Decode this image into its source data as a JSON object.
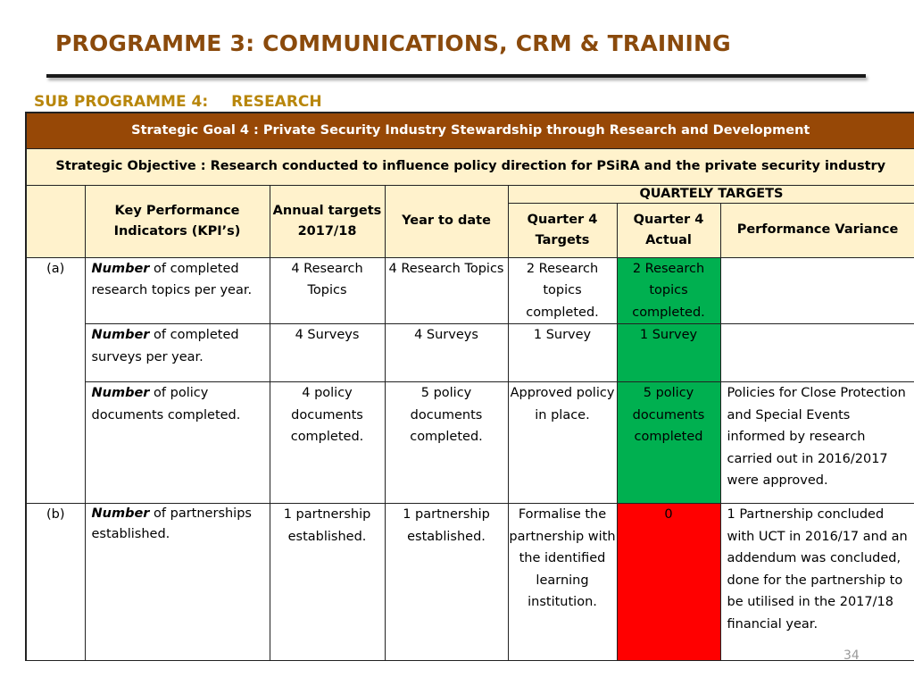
{
  "title": "PROGRAMME 3: COMMUNICATIONS, CRM & TRAINING",
  "sub_programme": {
    "label": "SUB PROGRAMME 4:",
    "name": "RESEARCH"
  },
  "strategic_goal": "Strategic Goal 4 : Private Security Industry Stewardship through Research and Development",
  "strategic_objective": "Strategic Objective : Research conducted to influence policy direction for PSiRA and the private security industry",
  "headers": {
    "kpi": "Key Performance Indicators (KPI’s)",
    "annual_targets": "Annual targets 2017/18",
    "year_to_date": "Year to date",
    "quarterly_targets": "QUARTELY  TARGETS",
    "q4_targets": "Quarter 4 Targets",
    "q4_actual": "Quarter 4 Actual",
    "variance": "Performance Variance"
  },
  "rows": [
    {
      "label": "(a)",
      "kpi_bold": "Number",
      "kpi_rest": " of completed research topics per year.",
      "annual": "4 Research Topics",
      "ytd": "4 Research Topics",
      "q4_target": "2 Research topics completed.",
      "q4_actual": "2 Research topics completed.",
      "variance": ""
    },
    {
      "label": "",
      "kpi_bold": "Number",
      "kpi_rest": " of completed surveys per year.",
      "annual": "4 Surveys",
      "ytd": "4 Surveys",
      "q4_target": "1 Survey",
      "q4_actual": "1 Survey",
      "variance": ""
    },
    {
      "label": "",
      "kpi_bold": "Number",
      "kpi_rest": " of policy documents completed.",
      "annual": "4 policy documents completed.",
      "ytd": "5 policy documents completed.",
      "q4_target": "Approved policy in place.",
      "q4_actual": "5 policy documents completed",
      "variance": "Policies for Close Protection and Special Events informed by research carried out in 2016/2017 were approved."
    },
    {
      "label": "(b)",
      "kpi_bold": "Number",
      "kpi_rest": " of partnerships established.",
      "annual": "1 partnership established.",
      "ytd": "1 partnership established.",
      "q4_target": "Formalise the partnership with the identified learning institution.",
      "q4_actual": "0",
      "variance": "1 Partnership concluded with UCT in 2016/17 and an addendum was concluded, done for the partnership to be utilised in the 2017/18 financial year."
    }
  ],
  "colors": {
    "title": "#8a4a0c",
    "subprogramme": "#b8860b",
    "goal_bg": "#974806",
    "header_bg": "#fff2cc",
    "achieved": "#00b050",
    "not_achieved": "#ff0000"
  },
  "page_number": "34"
}
